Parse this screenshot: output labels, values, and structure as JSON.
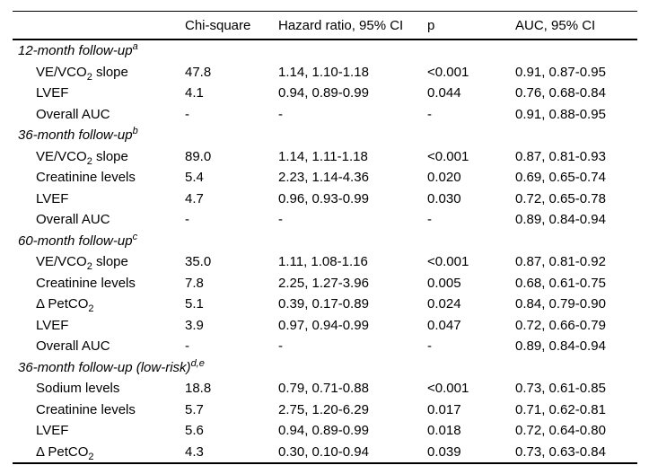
{
  "table": {
    "colors": {
      "text": "#000000",
      "background": "#ffffff",
      "rule": "#000000"
    },
    "columns": [
      "",
      "Chi-square",
      "Hazard ratio, 95% CI",
      "p",
      "AUC, 95% CI"
    ],
    "rows": [
      {
        "section": true,
        "label": [
          {
            "text": "12-month follow-up"
          },
          {
            "text": "a",
            "style": "sup"
          }
        ]
      },
      {
        "section": false,
        "label": [
          {
            "text": "VE/VCO"
          },
          {
            "text": "2",
            "style": "sub"
          },
          {
            "text": " slope"
          }
        ],
        "values": [
          "47.8",
          "1.14, 1.10-1.18",
          "<0.001",
          "0.91, 0.87-0.95"
        ]
      },
      {
        "section": false,
        "label": [
          {
            "text": "LVEF"
          }
        ],
        "values": [
          "4.1",
          "0.94, 0.89-0.99",
          "0.044",
          "0.76, 0.68-0.84"
        ]
      },
      {
        "section": false,
        "label": [
          {
            "text": "Overall AUC"
          }
        ],
        "values": [
          "-",
          "-",
          "-",
          "0.91, 0.88-0.95"
        ]
      },
      {
        "section": true,
        "label": [
          {
            "text": "36-month follow-up"
          },
          {
            "text": "b",
            "style": "sup"
          }
        ]
      },
      {
        "section": false,
        "label": [
          {
            "text": "VE/VCO"
          },
          {
            "text": "2",
            "style": "sub"
          },
          {
            "text": " slope"
          }
        ],
        "values": [
          "89.0",
          "1.14, 1.11-1.18",
          "<0.001",
          "0.87, 0.81-0.93"
        ]
      },
      {
        "section": false,
        "label": [
          {
            "text": "Creatinine levels"
          }
        ],
        "values": [
          "5.4",
          "2.23, 1.14-4.36",
          "0.020",
          "0.69, 0.65-0.74"
        ]
      },
      {
        "section": false,
        "label": [
          {
            "text": "LVEF"
          }
        ],
        "values": [
          "4.7",
          "0.96, 0.93-0.99",
          "0.030",
          "0.72, 0.65-0.78"
        ]
      },
      {
        "section": false,
        "label": [
          {
            "text": "Overall AUC"
          }
        ],
        "values": [
          "-",
          "-",
          "-",
          "0.89, 0.84-0.94"
        ]
      },
      {
        "section": true,
        "label": [
          {
            "text": "60-month follow-up"
          },
          {
            "text": "c",
            "style": "sup"
          }
        ]
      },
      {
        "section": false,
        "label": [
          {
            "text": "VE/VCO"
          },
          {
            "text": "2",
            "style": "sub"
          },
          {
            "text": " slope"
          }
        ],
        "values": [
          "35.0",
          "1.11, 1.08-1.16",
          "<0.001",
          "0.87, 0.81-0.92"
        ]
      },
      {
        "section": false,
        "label": [
          {
            "text": "Creatinine levels"
          }
        ],
        "values": [
          "7.8",
          "2.25, 1.27-3.96",
          "0.005",
          "0.68, 0.61-0.75"
        ]
      },
      {
        "section": false,
        "label": [
          {
            "text": "Δ PetCO"
          },
          {
            "text": "2",
            "style": "sub"
          }
        ],
        "values": [
          "5.1",
          "0.39, 0.17-0.89",
          "0.024",
          "0.84, 0.79-0.90"
        ]
      },
      {
        "section": false,
        "label": [
          {
            "text": "LVEF"
          }
        ],
        "values": [
          "3.9",
          "0.97, 0.94-0.99",
          "0.047",
          "0.72, 0.66-0.79"
        ]
      },
      {
        "section": false,
        "label": [
          {
            "text": "Overall AUC"
          }
        ],
        "values": [
          "-",
          "-",
          "-",
          "0.89, 0.84-0.94"
        ]
      },
      {
        "section": true,
        "label": [
          {
            "text": "36-month follow-up (low-risk)"
          },
          {
            "text": "d,e",
            "style": "sup"
          }
        ]
      },
      {
        "section": false,
        "label": [
          {
            "text": "Sodium levels"
          }
        ],
        "values": [
          "18.8",
          "0.79, 0.71-0.88",
          "<0.001",
          "0.73, 0.61-0.85"
        ]
      },
      {
        "section": false,
        "label": [
          {
            "text": "Creatinine levels"
          }
        ],
        "values": [
          "5.7",
          "2.75, 1.20-6.29",
          "0.017",
          "0.71, 0.62-0.81"
        ]
      },
      {
        "section": false,
        "label": [
          {
            "text": "LVEF"
          }
        ],
        "values": [
          "5.6",
          "0.94, 0.89-0.99",
          "0.018",
          "0.72, 0.64-0.80"
        ]
      },
      {
        "section": false,
        "label": [
          {
            "text": "Δ PetCO"
          },
          {
            "text": "2",
            "style": "sub"
          }
        ],
        "values": [
          "4.3",
          "0.30, 0.10-0.94",
          "0.039",
          "0.73, 0.63-0.84"
        ]
      }
    ]
  }
}
